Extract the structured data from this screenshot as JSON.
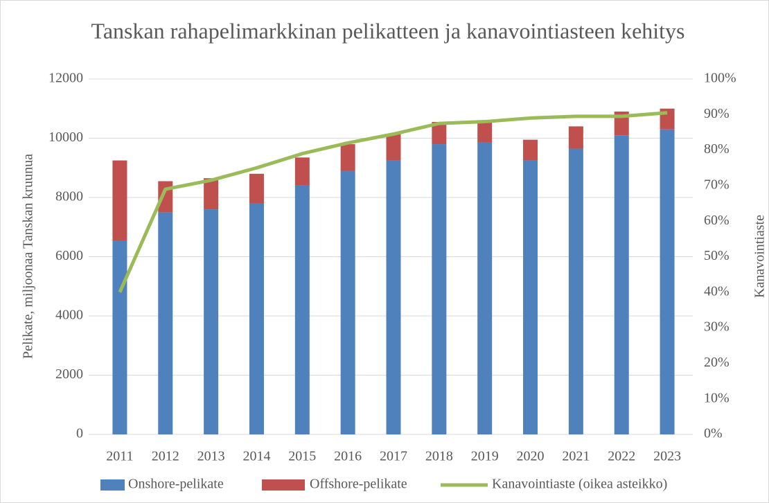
{
  "chart_data": {
    "type": "bar+line",
    "title": "Tanskan rahapelimarkkinan pelikatteen ja kanavointiasteen kehitys",
    "ylabel": "Pelikate, miljoonaa Tanskan kruunua",
    "y2label": "Kanavointiaste",
    "categories": [
      "2011",
      "2012",
      "2013",
      "2014",
      "2015",
      "2016",
      "2017",
      "2018",
      "2019",
      "2020",
      "2021",
      "2022",
      "2023"
    ],
    "series": [
      {
        "name": "Onshore-pelikate",
        "color": "#4f81bd",
        "type": "bar",
        "values": [
          6550,
          7500,
          7600,
          7800,
          8400,
          8900,
          9250,
          9800,
          9850,
          9250,
          9650,
          10100,
          10300
        ]
      },
      {
        "name": "Offshore-pelikate",
        "color": "#c0504d",
        "type": "bar",
        "values": [
          2700,
          1050,
          1050,
          1000,
          950,
          900,
          900,
          750,
          750,
          700,
          750,
          800,
          700
        ]
      },
      {
        "name": "Kanavointiaste (oikea asteikko)",
        "color": "#9bbb59",
        "type": "line",
        "axis": "y2",
        "values": [
          40,
          69,
          71.5,
          75,
          79,
          82,
          84.5,
          87.5,
          88,
          89,
          89.5,
          89.5,
          90.5
        ]
      }
    ],
    "ylim": [
      0,
      12000
    ],
    "yticks": [
      0,
      2000,
      4000,
      6000,
      8000,
      10000,
      12000
    ],
    "y2lim": [
      0,
      100
    ],
    "y2ticks": [
      {
        "value": 0,
        "label": "0%"
      },
      {
        "value": 10,
        "label": "10%"
      },
      {
        "value": 20,
        "label": "20%"
      },
      {
        "value": 30,
        "label": "30%"
      },
      {
        "value": 40,
        "label": "40%"
      },
      {
        "value": 50,
        "label": "50%"
      },
      {
        "value": 60,
        "label": "60%"
      },
      {
        "value": 70,
        "label": "70%"
      },
      {
        "value": 80,
        "label": "80%"
      },
      {
        "value": 90,
        "label": "90%"
      },
      {
        "value": 100,
        "label": "100%"
      }
    ],
    "grid": true,
    "legend": "bottom"
  }
}
